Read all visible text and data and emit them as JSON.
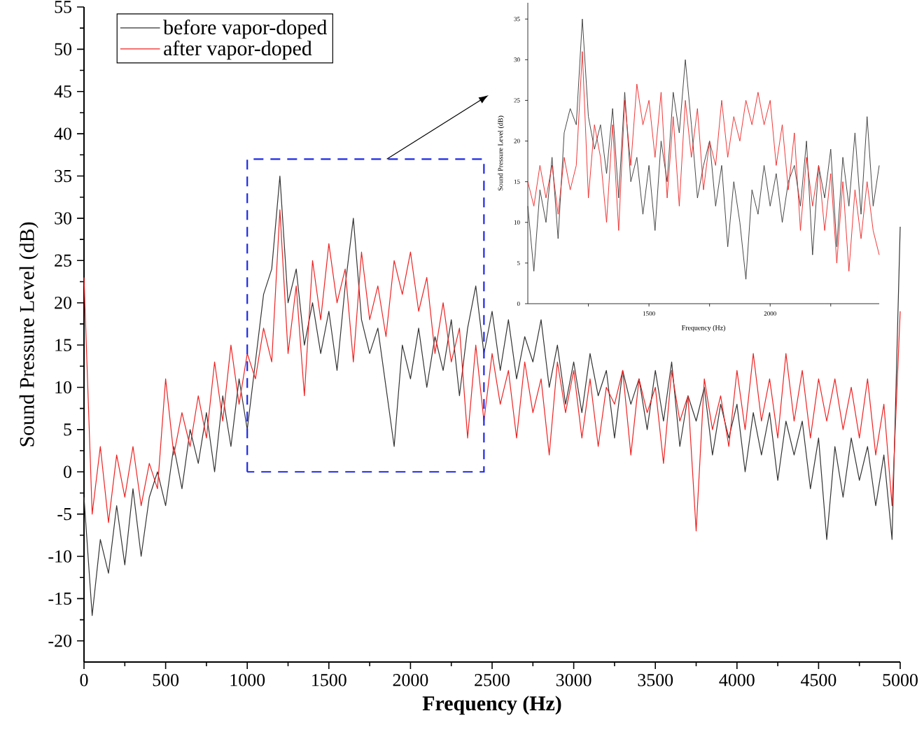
{
  "chart_data": [
    {
      "type": "line",
      "xlabel": "Frequency (Hz)",
      "ylabel": "Sound Pressure Level (dB)",
      "x": [
        0,
        50,
        100,
        150,
        200,
        250,
        300,
        350,
        400,
        450,
        500,
        550,
        600,
        650,
        700,
        750,
        800,
        850,
        900,
        950,
        1000,
        1050,
        1100,
        1150,
        1200,
        1250,
        1300,
        1350,
        1400,
        1450,
        1500,
        1550,
        1600,
        1650,
        1700,
        1750,
        1800,
        1850,
        1900,
        1950,
        2000,
        2050,
        2100,
        2150,
        2200,
        2250,
        2300,
        2350,
        2400,
        2450,
        2500,
        2550,
        2600,
        2650,
        2700,
        2750,
        2800,
        2850,
        2900,
        2950,
        3000,
        3050,
        3100,
        3150,
        3200,
        3250,
        3300,
        3350,
        3400,
        3450,
        3500,
        3550,
        3600,
        3650,
        3700,
        3750,
        3800,
        3850,
        3900,
        3950,
        4000,
        4050,
        4100,
        4150,
        4200,
        4250,
        4300,
        4350,
        4400,
        4450,
        4500,
        4550,
        4600,
        4650,
        4700,
        4750,
        4800,
        4850,
        4900,
        4950,
        5000
      ],
      "series": [
        {
          "name": "before vapor-doped",
          "color": "#333333",
          "values": [
            -3,
            -17,
            -8,
            -12,
            -4,
            -11,
            -2,
            -10,
            -3,
            0,
            -4,
            3,
            -2,
            5,
            1,
            7,
            0,
            9,
            3,
            11,
            5,
            13,
            21,
            24,
            35,
            20,
            24,
            15,
            20,
            14,
            19,
            12,
            22,
            30,
            18,
            14,
            17,
            10,
            3,
            15,
            11,
            17,
            10,
            16,
            12,
            18,
            9,
            17,
            22,
            14,
            19,
            12,
            18,
            11,
            16,
            13,
            18,
            10,
            15,
            8,
            13,
            7,
            14,
            9,
            12,
            4,
            12,
            8,
            11,
            5,
            12,
            6,
            13,
            3,
            9,
            6,
            10,
            2,
            8,
            4,
            8,
            0,
            7,
            2,
            7,
            -1,
            6,
            2,
            6,
            -2,
            4,
            -8,
            3,
            -3,
            4,
            -1,
            3,
            -4,
            2,
            -8,
            29
          ]
        },
        {
          "name": "after vapor-doped",
          "color": "#ee2222",
          "values": [
            23,
            -5,
            3,
            -6,
            2,
            -3,
            3,
            -4,
            1,
            -2,
            11,
            2,
            7,
            3,
            9,
            4,
            13,
            6,
            15,
            8,
            14,
            11,
            17,
            13,
            31,
            14,
            22,
            9,
            25,
            18,
            27,
            20,
            24,
            13,
            26,
            18,
            22,
            16,
            25,
            21,
            26,
            19,
            23,
            14,
            20,
            13,
            17,
            4,
            15,
            6,
            14,
            8,
            12,
            4,
            13,
            7,
            11,
            2,
            13,
            7,
            12,
            4,
            11,
            3,
            10,
            8,
            12,
            2,
            11,
            7,
            10,
            1,
            12,
            6,
            9,
            -7,
            11,
            5,
            9,
            3,
            12,
            5,
            14,
            6,
            11,
            4,
            14,
            6,
            12,
            4,
            11,
            6,
            11,
            5,
            10,
            4,
            11,
            2,
            8,
            -4,
            19
          ]
        }
      ],
      "xlim": [
        0,
        5000
      ],
      "xticks": [
        0,
        500,
        1000,
        1500,
        2000,
        2500,
        3000,
        3500,
        4000,
        4500,
        5000
      ],
      "ylim": [
        -22.5,
        55
      ],
      "yticks": [
        -20,
        -15,
        -10,
        -5,
        0,
        5,
        10,
        15,
        20,
        25,
        30,
        35,
        40,
        45,
        50,
        55
      ],
      "legend": "top left"
    },
    {
      "type": "line",
      "xlabel": "Frequency (Hz)",
      "ylabel": "Sound Pressure Level (dB)",
      "x": [
        1000,
        1025,
        1050,
        1075,
        1100,
        1125,
        1150,
        1175,
        1200,
        1225,
        1250,
        1275,
        1300,
        1325,
        1350,
        1375,
        1400,
        1425,
        1450,
        1475,
        1500,
        1525,
        1550,
        1575,
        1600,
        1625,
        1650,
        1675,
        1700,
        1725,
        1750,
        1775,
        1800,
        1825,
        1850,
        1875,
        1900,
        1925,
        1950,
        1975,
        2000,
        2025,
        2050,
        2075,
        2100,
        2125,
        2150,
        2175,
        2200,
        2225,
        2250,
        2275,
        2300,
        2325,
        2350,
        2375,
        2400,
        2425,
        2450
      ],
      "series": [
        {
          "color": "#333333",
          "values": [
            12,
            4,
            14,
            10,
            18,
            8,
            21,
            24,
            22,
            35,
            23,
            19,
            22,
            16,
            24,
            13,
            26,
            15,
            18,
            11,
            17,
            9,
            20,
            15,
            26,
            21,
            30,
            22,
            13,
            17,
            20,
            12,
            17,
            7,
            15,
            10,
            3,
            14,
            11,
            17,
            12,
            16,
            10,
            15,
            17,
            12,
            20,
            6,
            17,
            13,
            19,
            7,
            18,
            12,
            21,
            11,
            23,
            12,
            17
          ]
        },
        {
          "color": "#ee2222",
          "values": [
            15,
            12,
            17,
            13,
            17,
            11,
            18,
            14,
            17,
            31,
            13,
            22,
            18,
            10,
            22,
            9,
            25,
            17,
            27,
            22,
            25,
            18,
            26,
            13,
            23,
            12,
            25,
            18,
            24,
            14,
            20,
            17,
            25,
            18,
            23,
            20,
            25,
            22,
            26,
            22,
            25,
            17,
            22,
            14,
            21,
            9,
            18,
            12,
            17,
            9,
            16,
            5,
            15,
            4,
            14,
            8,
            15,
            9,
            6
          ]
        }
      ],
      "xlim": [
        1000,
        2450
      ],
      "xticks": [
        {
          "value": 1250,
          "label": null
        },
        1500,
        {
          "value": 1750,
          "label": null
        },
        2000,
        {
          "value": 2250,
          "label": null
        }
      ],
      "ylim": [
        0,
        37
      ],
      "yticks": [
        0,
        5,
        10,
        15,
        20,
        25,
        30,
        35
      ]
    }
  ]
}
